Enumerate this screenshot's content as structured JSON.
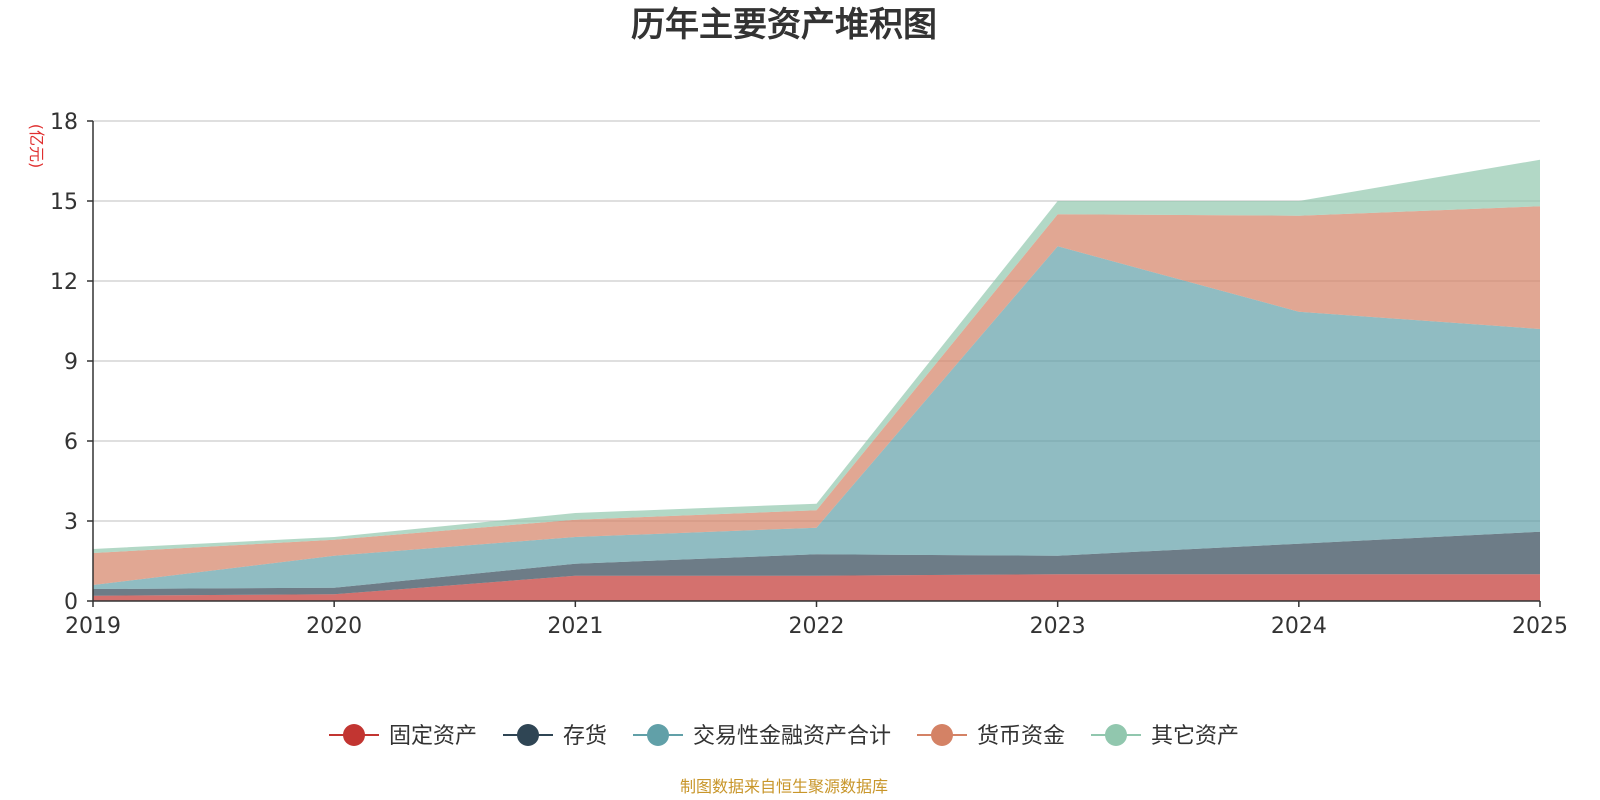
{
  "chart_data": {
    "type": "area",
    "stacked": true,
    "title": "历年主要资产堆积图",
    "unit_label": "(亿元)",
    "x": [
      "2019",
      "2020",
      "2021",
      "2022",
      "2023",
      "2024",
      "2025"
    ],
    "ylim": [
      0,
      18
    ],
    "yticks": [
      0,
      3,
      6,
      9,
      12,
      15,
      18
    ],
    "ytick_labels": [
      "0",
      "3",
      "6",
      "9",
      "12",
      "15",
      "18"
    ],
    "grid": true,
    "legend_position": "bottom-center",
    "series": [
      {
        "name": "固定资产",
        "color": "#c23531",
        "values": [
          0.2,
          0.25,
          0.95,
          0.95,
          1.0,
          1.0,
          1.0
        ]
      },
      {
        "name": "存货",
        "color": "#2f4554",
        "values": [
          0.25,
          0.25,
          0.45,
          0.8,
          0.7,
          1.15,
          1.6
        ]
      },
      {
        "name": "交易性金融资产合计",
        "color": "#61a0a8",
        "values": [
          0.15,
          1.2,
          1.0,
          1.0,
          11.6,
          8.7,
          7.6
        ]
      },
      {
        "name": "货币资金",
        "color": "#d48265",
        "values": [
          1.2,
          0.6,
          0.65,
          0.65,
          1.2,
          3.6,
          4.6
        ]
      },
      {
        "name": "其它资产",
        "color": "#91c7ae",
        "values": [
          0.15,
          0.1,
          0.25,
          0.25,
          0.5,
          0.55,
          1.75
        ]
      }
    ],
    "source_note": "制图数据来自恒生聚源数据库"
  }
}
